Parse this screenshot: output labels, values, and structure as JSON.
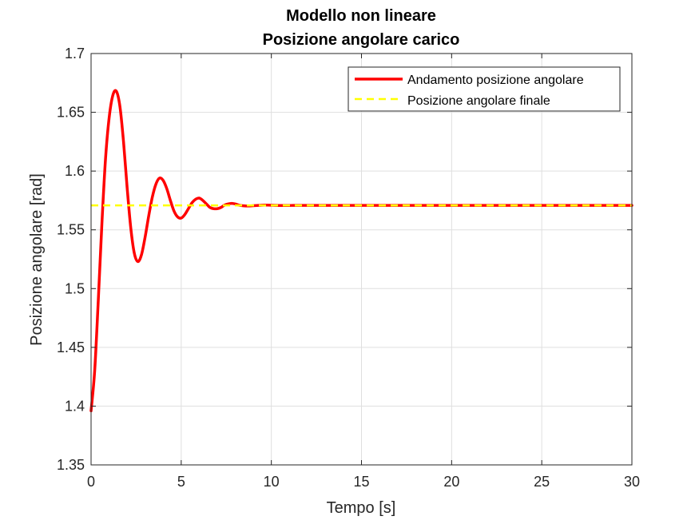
{
  "chart_data": {
    "type": "line",
    "title": "Modello non lineare",
    "subtitle": "Posizione angolare carico",
    "xlabel": "Tempo [s]",
    "ylabel": "Posizione angolare [rad]",
    "xlim": [
      0,
      30
    ],
    "ylim": [
      1.35,
      1.7
    ],
    "xticks": [
      0,
      5,
      10,
      15,
      20,
      25,
      30
    ],
    "xtick_labels": [
      "0",
      "5",
      "10",
      "15",
      "20",
      "25",
      "30"
    ],
    "yticks": [
      1.35,
      1.4,
      1.45,
      1.5,
      1.55,
      1.6,
      1.65,
      1.7
    ],
    "ytick_labels": [
      "1.35",
      "1.4",
      "1.45",
      "1.5",
      "1.55",
      "1.6",
      "1.65",
      "1.7"
    ],
    "grid": true,
    "legend_position": "top-right",
    "series": [
      {
        "name": "Andamento posizione angolare",
        "color": "#ff0000",
        "style": "solid",
        "x": [
          0,
          0.2,
          0.4,
          0.6,
          0.8,
          1.0,
          1.2,
          1.4,
          1.6,
          1.8,
          2.0,
          2.2,
          2.4,
          2.6,
          2.8,
          3.0,
          3.2,
          3.4,
          3.6,
          3.8,
          4.0,
          4.2,
          4.4,
          4.6,
          4.8,
          5.0,
          5.2,
          5.4,
          5.6,
          5.8,
          6.0,
          6.2,
          6.4,
          6.6,
          6.8,
          7.0,
          7.2,
          7.4,
          7.6,
          7.8,
          8.0,
          8.2,
          8.4,
          8.6,
          8.8,
          9.0,
          9.2,
          9.4,
          9.6,
          9.8,
          10.0,
          10.2,
          10.4,
          10.6,
          10.8,
          11.0,
          11.2,
          11.4,
          11.6,
          11.8,
          12.0,
          12.2,
          12.4,
          12.6,
          12.8,
          13.0,
          14.0,
          16.0,
          18.0,
          20.0,
          22.0,
          24.0,
          26.0,
          28.0,
          30.0
        ],
        "y": [
          1.396,
          1.43,
          1.49,
          1.555,
          1.61,
          1.645,
          1.664,
          1.668,
          1.655,
          1.625,
          1.586,
          1.552,
          1.53,
          1.523,
          1.529,
          1.544,
          1.562,
          1.578,
          1.589,
          1.594,
          1.592,
          1.585,
          1.575,
          1.566,
          1.561,
          1.56,
          1.563,
          1.568,
          1.573,
          1.576,
          1.577,
          1.575,
          1.572,
          1.569,
          1.568,
          1.568,
          1.569,
          1.571,
          1.572,
          1.5725,
          1.572,
          1.571,
          1.5705,
          1.5703,
          1.5703,
          1.5705,
          1.5707,
          1.5709,
          1.571,
          1.571,
          1.5709,
          1.5708,
          1.5707,
          1.5707,
          1.5707,
          1.5707,
          1.5708,
          1.5708,
          1.5708,
          1.5708,
          1.5708,
          1.5708,
          1.5708,
          1.5708,
          1.5708,
          1.5708,
          1.5708,
          1.5708,
          1.5708,
          1.5708,
          1.5708,
          1.5708,
          1.5708,
          1.5708,
          1.5708
        ]
      },
      {
        "name": "Posizione angolare finale",
        "color": "#ffff00",
        "style": "dashed",
        "x": [
          0,
          30
        ],
        "y": [
          1.5708,
          1.5708
        ]
      }
    ]
  }
}
